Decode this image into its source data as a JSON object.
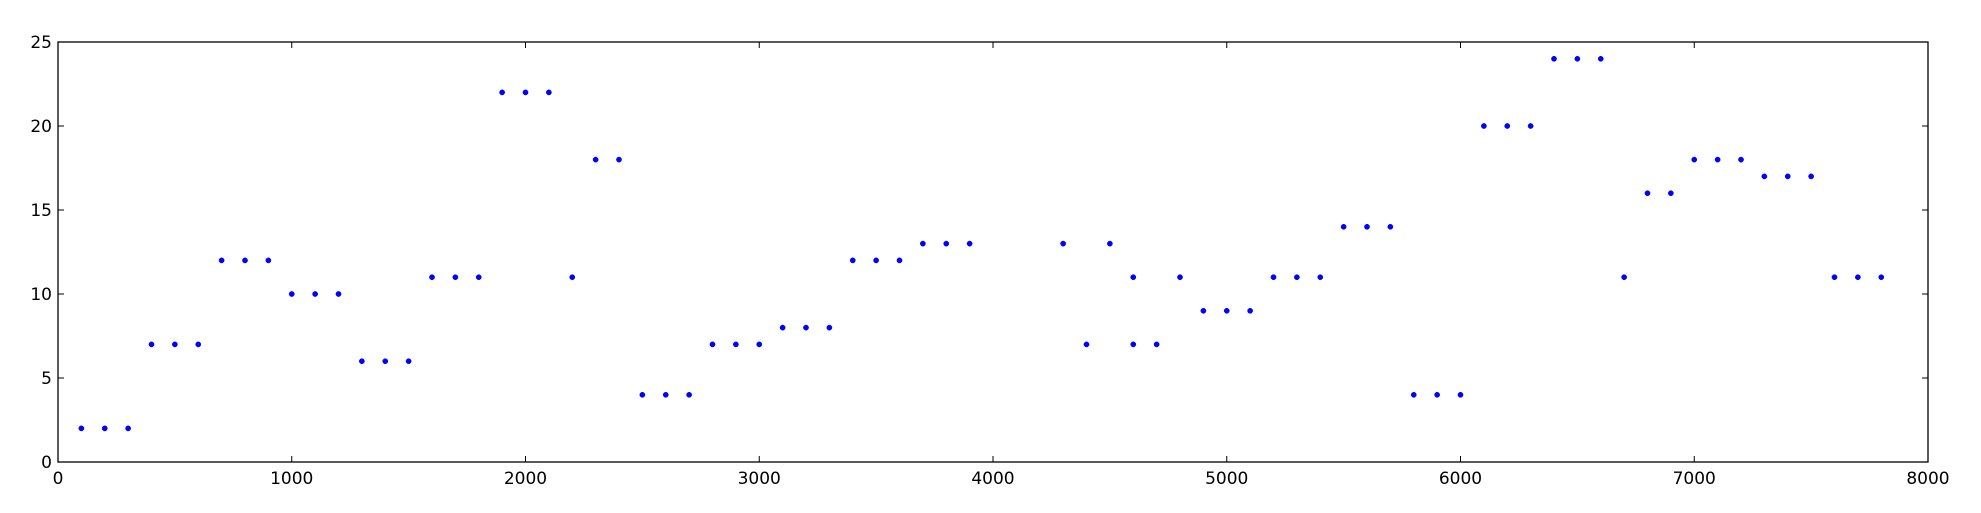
{
  "chart_data": {
    "type": "scatter",
    "title": "",
    "xlabel": "",
    "ylabel": "",
    "xlim": [
      0,
      8000
    ],
    "ylim": [
      0,
      25
    ],
    "xticks": [
      0,
      1000,
      2000,
      3000,
      4000,
      5000,
      6000,
      7000,
      8000
    ],
    "yticks": [
      0,
      5,
      10,
      15,
      20,
      25
    ],
    "grid": false,
    "marker_color": "#0000ff",
    "series": [
      {
        "x": [
          100,
          200,
          300,
          400,
          500,
          600,
          700,
          800,
          900,
          1000,
          1100,
          1200,
          1300,
          1400,
          1500,
          1600,
          1700,
          1800,
          1900,
          2000,
          2100,
          2200,
          2300,
          2400,
          2500,
          2600,
          2700,
          2800,
          2900,
          3000,
          3100,
          3200,
          3300,
          3400,
          3500,
          3600,
          3700,
          3800,
          3900,
          4300,
          4400,
          4500,
          4600,
          4600,
          4700,
          4800,
          4900,
          5000,
          5100,
          5200,
          5300,
          5400,
          5500,
          5600,
          5700,
          5800,
          5900,
          6000,
          6100,
          6200,
          6300,
          6400,
          6500,
          6600,
          6700,
          6800,
          6900,
          7000,
          7100,
          7200,
          7300,
          7400,
          7500,
          7600,
          7700,
          7800
        ],
        "y": [
          2,
          2,
          2,
          7,
          7,
          7,
          12,
          12,
          12,
          10,
          10,
          10,
          6,
          6,
          6,
          11,
          11,
          11,
          22,
          22,
          22,
          11,
          18,
          18,
          4,
          4,
          4,
          7,
          7,
          7,
          8,
          8,
          8,
          12,
          12,
          12,
          13,
          13,
          13,
          13,
          7,
          13,
          11,
          7,
          7,
          11,
          9,
          9,
          9,
          11,
          11,
          11,
          14,
          14,
          14,
          4,
          4,
          4,
          20,
          20,
          20,
          24,
          24,
          24,
          11,
          16,
          16,
          18,
          18,
          18,
          17,
          17,
          17,
          11,
          11,
          11
        ]
      }
    ]
  }
}
